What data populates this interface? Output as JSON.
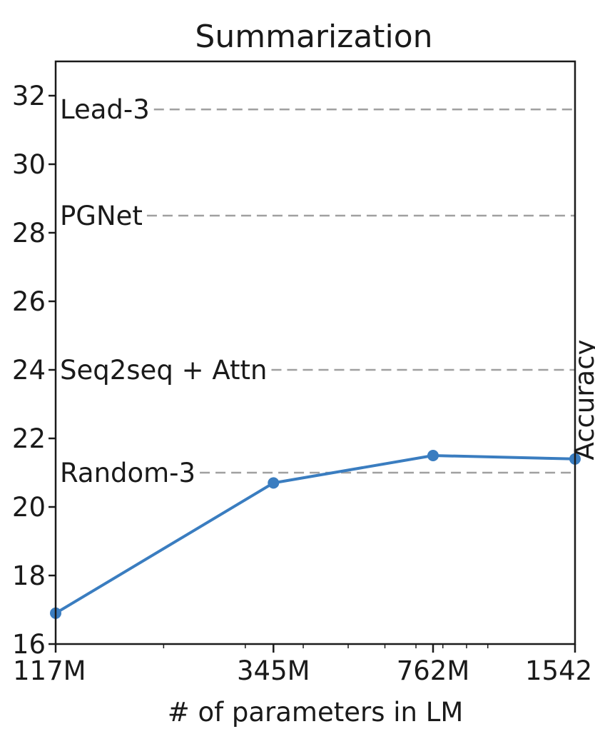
{
  "chart_data": {
    "type": "line",
    "title": "Summarization",
    "xlabel": "# of parameters in LM",
    "ylabel": "",
    "x_scale": "log",
    "x_ticks": [
      {
        "value": 117,
        "label": "117M"
      },
      {
        "value": 345,
        "label": "345M"
      },
      {
        "value": 762,
        "label": "762M"
      },
      {
        "value": 1542,
        "label": "1542"
      }
    ],
    "xlim": [
      117,
      1542
    ],
    "ylim": [
      16,
      33
    ],
    "y_ticks": [
      16,
      18,
      20,
      22,
      24,
      26,
      28,
      30,
      32
    ],
    "grid": false,
    "series": [
      {
        "x": [
          117,
          345,
          762,
          1542
        ],
        "y": [
          16.9,
          20.7,
          21.5,
          21.4
        ],
        "color": "#3a7dc0"
      }
    ],
    "reference_lines": [
      {
        "label": "Lead-3",
        "value": 31.6
      },
      {
        "label": "PGNet",
        "value": 28.5
      },
      {
        "label": "Seq2seq + Attn",
        "value": 24.0
      },
      {
        "label": "Random-3",
        "value": 21.0
      }
    ],
    "side_text": "Accuracy",
    "colors": {
      "series": "#3a7dc0",
      "reference": "#a0a0a0",
      "axes": "#1a1a1a"
    }
  }
}
